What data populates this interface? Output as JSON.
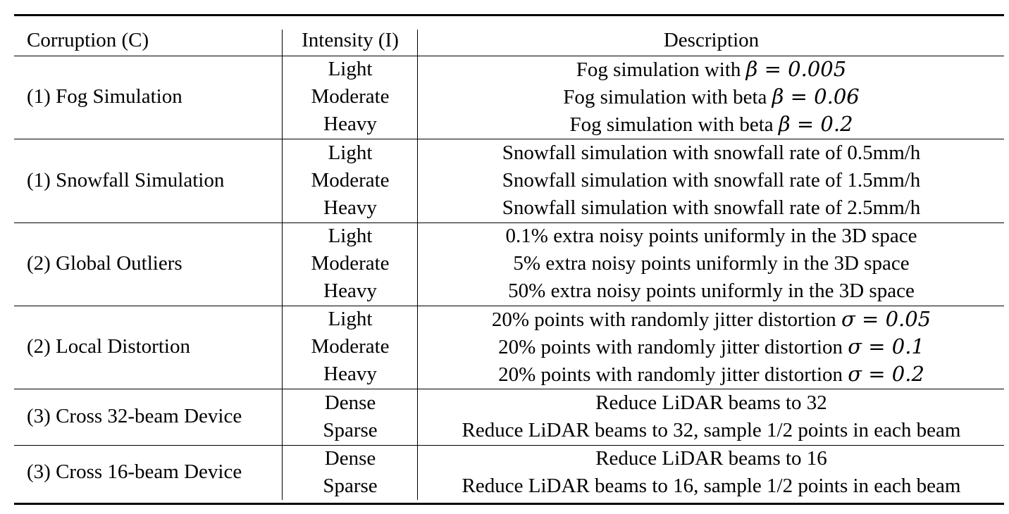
{
  "table": {
    "headers": [
      "Corruption (C)",
      "Intensity (I)",
      "Description"
    ],
    "groups": [
      {
        "corruption": "(1) Fog Simulation",
        "rows": [
          {
            "intensity": "Light",
            "desc_text": "Fog simulation with ",
            "desc_math": "β = 0.005",
            "desc_tail": ""
          },
          {
            "intensity": "Moderate",
            "desc_text": "Fog simulation with beta ",
            "desc_math": "β = 0.06",
            "desc_tail": ""
          },
          {
            "intensity": "Heavy",
            "desc_text": "Fog simulation with beta ",
            "desc_math": "β = 0.2",
            "desc_tail": ""
          }
        ]
      },
      {
        "corruption": "(1) Snowfall Simulation",
        "rows": [
          {
            "intensity": "Light",
            "desc_text": "Snowfall simulation with snowfall rate of 0.5mm/h",
            "desc_math": "",
            "desc_tail": ""
          },
          {
            "intensity": "Moderate",
            "desc_text": "Snowfall simulation with snowfall rate of 1.5mm/h",
            "desc_math": "",
            "desc_tail": ""
          },
          {
            "intensity": "Heavy",
            "desc_text": "Snowfall simulation with snowfall rate of 2.5mm/h",
            "desc_math": "",
            "desc_tail": ""
          }
        ]
      },
      {
        "corruption": "(2) Global Outliers",
        "rows": [
          {
            "intensity": "Light",
            "desc_text": "0.1% extra noisy points uniformly in the 3D space",
            "desc_math": "",
            "desc_tail": ""
          },
          {
            "intensity": "Moderate",
            "desc_text": "5% extra noisy points uniformly in the 3D space",
            "desc_math": "",
            "desc_tail": ""
          },
          {
            "intensity": "Heavy",
            "desc_text": "50% extra noisy points uniformly in the 3D space",
            "desc_math": "",
            "desc_tail": ""
          }
        ]
      },
      {
        "corruption": "(2) Local Distortion",
        "rows": [
          {
            "intensity": "Light",
            "desc_text": "20% points with randomly jitter distortion ",
            "desc_math": "σ = 0.05",
            "desc_tail": ""
          },
          {
            "intensity": "Moderate",
            "desc_text": "20% points with randomly jitter distortion ",
            "desc_math": "σ = 0.1",
            "desc_tail": ""
          },
          {
            "intensity": "Heavy",
            "desc_text": "20% points with randomly jitter distortion ",
            "desc_math": "σ = 0.2",
            "desc_tail": ""
          }
        ]
      },
      {
        "corruption": "(3) Cross 32-beam Device",
        "rows": [
          {
            "intensity": "Dense",
            "desc_text": "Reduce LiDAR beams to 32",
            "desc_math": "",
            "desc_tail": ""
          },
          {
            "intensity": "Sparse",
            "desc_text": "Reduce LiDAR beams to 32, sample 1/2 points in each beam",
            "desc_math": "",
            "desc_tail": ""
          }
        ]
      },
      {
        "corruption": "(3) Cross 16-beam Device",
        "rows": [
          {
            "intensity": "Dense",
            "desc_text": "Reduce LiDAR beams to 16",
            "desc_math": "",
            "desc_tail": ""
          },
          {
            "intensity": "Sparse",
            "desc_text": "Reduce LiDAR beams to 16, sample 1/2 points in each beam",
            "desc_math": "",
            "desc_tail": ""
          }
        ]
      }
    ]
  }
}
